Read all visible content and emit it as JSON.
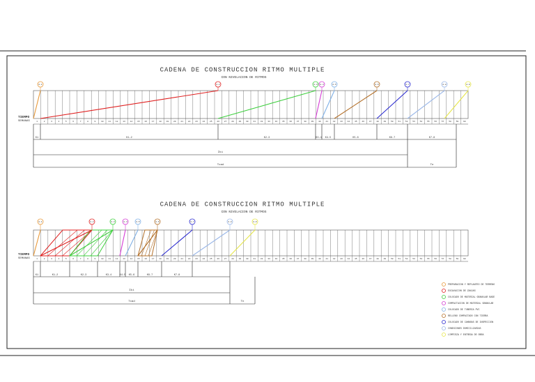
{
  "diagrams": [
    {
      "title": "CADENA DE CONSTRUCCION RITMO MULTIPLE",
      "subtitle": "CON NIVELACION DE RITMOS",
      "axis_label": [
        "TIEMPO",
        "SEMANAS"
      ],
      "activities": [
        "A-1",
        "A-2",
        "A-3",
        "A-4",
        "A-5",
        "A-6",
        "A-7",
        "A-8",
        "A-9"
      ],
      "weeks": [
        1,
        2,
        3,
        4,
        5,
        6,
        7,
        8,
        9,
        10,
        11,
        12,
        13,
        14,
        15,
        16,
        17,
        18,
        19,
        20,
        21,
        22,
        23,
        24,
        25,
        26,
        27,
        28,
        29,
        30,
        31,
        32,
        33,
        34,
        35,
        36,
        37,
        38,
        39,
        40,
        41,
        42,
        43,
        44,
        45,
        46,
        47,
        48,
        49,
        50,
        51,
        52,
        53,
        54,
        55,
        56,
        57,
        58,
        59,
        60
      ],
      "intervals": [
        "K1",
        "K1-2",
        "K2-3",
        "K3-4",
        "K4-5",
        "K5-6",
        "K6-7",
        "K7-8"
      ],
      "sum_label": "Σki",
      "total_label": "Tcad",
      "last_label": "Tn"
    },
    {
      "title": "CADENA DE CONSTRUCCION RITMO MULTIPLE",
      "subtitle": "CON NIVELACION DE RITMOS",
      "axis_label": [
        "TIEMPO",
        "SEMANAS"
      ],
      "activities": [
        "A-1",
        "A-2",
        "A-3",
        "A-4",
        "A-5",
        "A-6",
        "A-7",
        "A-8",
        "A-9"
      ],
      "weeks": [
        1,
        2,
        3,
        4,
        5,
        6,
        7,
        8,
        9,
        10,
        11,
        12,
        13,
        14,
        15,
        16,
        17,
        18,
        19,
        20,
        21,
        22,
        23,
        24,
        25,
        26,
        27,
        28,
        29,
        30,
        31,
        32,
        33,
        34,
        35,
        36,
        37,
        38,
        39,
        40,
        41,
        42,
        43,
        44,
        45,
        46,
        47,
        48,
        49,
        50,
        51,
        52,
        53,
        54,
        55,
        56,
        57,
        58,
        59,
        60
      ],
      "intervals": [
        "K1",
        "K1-2",
        "K2-3",
        "K3-4",
        "K4-5",
        "K5-6",
        "K6-7",
        "K7-8"
      ],
      "sum_label": "Σki",
      "total_label": "Tcad",
      "last_label": "Tn"
    }
  ],
  "legend": [
    "PREPARACION Y REPLANTEO DE TERRENO",
    "EXCAVACION DE ZANJAS",
    "COLOCADO DE MATERIAL GRANULAR BASE",
    "COMPACTACION DE MATERIAL GRANULAR",
    "COLOCADO DE TUBERIA PVC",
    "RELLENO COMPACTADO CON TIERRA",
    "COLOCADO DE CAMARAS DE INSPECCION",
    "CONEXIONES DOMICILIARIAS",
    "LIMPIEZA Y ENTREGA DE OBRA"
  ]
}
